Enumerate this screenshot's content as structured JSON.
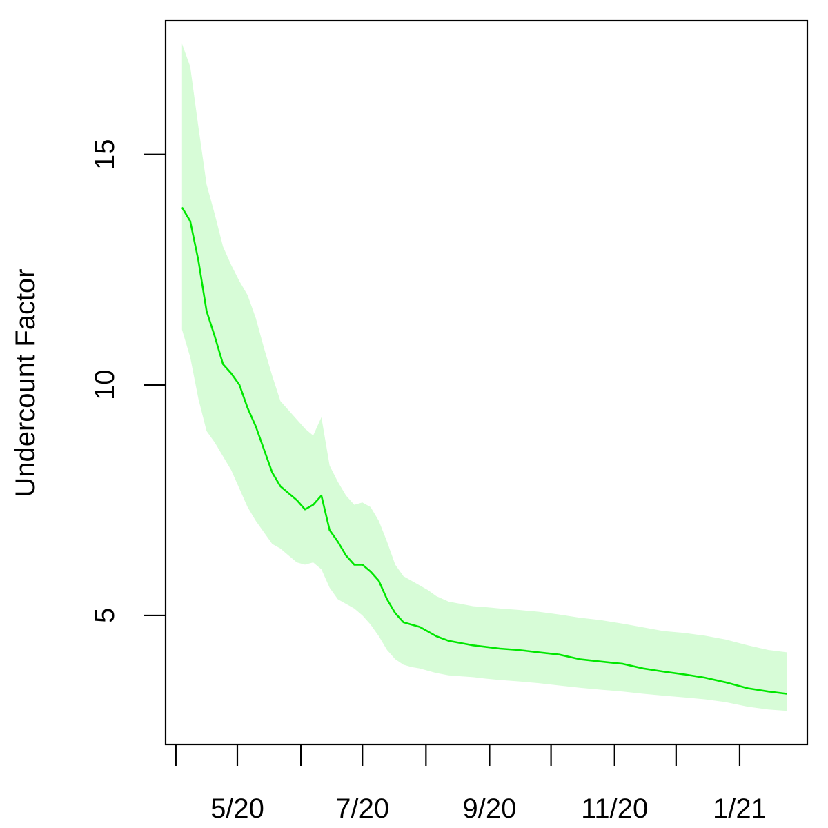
{
  "chart_data": {
    "type": "line",
    "title": "",
    "xlabel": "",
    "ylabel": "Undercount Factor",
    "x_tick_labels": [
      "5/20",
      "7/20",
      "9/20",
      "11/20",
      "1/21"
    ],
    "x_tick_dates": [
      "2020-04-01",
      "2020-05-01",
      "2020-06-01",
      "2020-07-01",
      "2020-08-01",
      "2020-09-01",
      "2020-10-01",
      "2020-11-01",
      "2020-12-01",
      "2021-01-01"
    ],
    "x_tick_labeled_dates": [
      "2020-05-01",
      "2020-07-01",
      "2020-09-01",
      "2020-11-01",
      "2021-01-01"
    ],
    "y_tick_labels": [
      "5",
      "10",
      "15"
    ],
    "y_ticks": [
      5,
      10,
      15
    ],
    "xlim": [
      "2020-03-27",
      "2021-02-03"
    ],
    "ylim": [
      2.2,
      17.9
    ],
    "grid": false,
    "line_color": "#00e600",
    "band_color": "#d7fcd7",
    "series": [
      {
        "x": [
          "2020-04-04",
          "2020-04-08",
          "2020-04-12",
          "2020-04-16",
          "2020-04-20",
          "2020-04-24",
          "2020-04-28",
          "2020-05-02",
          "2020-05-06",
          "2020-05-10",
          "2020-05-14",
          "2020-05-18",
          "2020-05-22",
          "2020-05-26",
          "2020-05-30",
          "2020-06-03",
          "2020-06-07",
          "2020-06-11",
          "2020-06-15",
          "2020-06-19",
          "2020-06-23",
          "2020-06-27",
          "2020-07-01",
          "2020-07-05",
          "2020-07-09",
          "2020-07-13",
          "2020-07-17",
          "2020-07-21",
          "2020-07-25",
          "2020-07-29",
          "2020-08-02",
          "2020-08-06",
          "2020-08-12",
          "2020-08-18",
          "2020-08-24",
          "2020-08-30",
          "2020-09-06",
          "2020-09-15",
          "2020-09-25",
          "2020-10-05",
          "2020-10-15",
          "2020-10-25",
          "2020-11-05",
          "2020-11-15",
          "2020-11-25",
          "2020-12-05",
          "2020-12-15",
          "2020-12-25",
          "2021-01-05",
          "2021-01-15",
          "2021-01-24"
        ],
        "y": [
          13.85,
          13.55,
          12.7,
          11.6,
          11.05,
          10.45,
          10.25,
          10.0,
          9.5,
          9.1,
          8.6,
          8.1,
          7.8,
          7.65,
          7.5,
          7.3,
          7.4,
          7.6,
          6.85,
          6.6,
          6.3,
          6.1,
          6.1,
          5.95,
          5.75,
          5.35,
          5.05,
          4.85,
          4.8,
          4.75,
          4.65,
          4.55,
          4.45,
          4.4,
          4.35,
          4.32,
          4.28,
          4.25,
          4.2,
          4.15,
          4.05,
          4.0,
          3.95,
          3.85,
          3.78,
          3.72,
          3.65,
          3.55,
          3.42,
          3.35,
          3.3
        ],
        "lower": [
          11.2,
          10.6,
          9.7,
          9.0,
          8.75,
          8.45,
          8.15,
          7.75,
          7.35,
          7.05,
          6.8,
          6.55,
          6.45,
          6.3,
          6.15,
          6.1,
          6.15,
          6.0,
          5.6,
          5.35,
          5.25,
          5.15,
          5.0,
          4.8,
          4.55,
          4.25,
          4.05,
          3.93,
          3.88,
          3.85,
          3.8,
          3.75,
          3.7,
          3.68,
          3.66,
          3.63,
          3.6,
          3.57,
          3.53,
          3.48,
          3.43,
          3.39,
          3.35,
          3.3,
          3.26,
          3.22,
          3.18,
          3.12,
          3.02,
          2.96,
          2.93
        ],
        "upper": [
          17.4,
          16.9,
          15.6,
          14.35,
          13.7,
          13.0,
          12.6,
          12.25,
          11.95,
          11.45,
          10.8,
          10.2,
          9.65,
          9.45,
          9.25,
          9.05,
          8.9,
          9.3,
          8.25,
          7.9,
          7.6,
          7.4,
          7.45,
          7.35,
          7.05,
          6.6,
          6.1,
          5.85,
          5.75,
          5.65,
          5.55,
          5.42,
          5.3,
          5.25,
          5.2,
          5.18,
          5.15,
          5.12,
          5.08,
          5.02,
          4.95,
          4.9,
          4.82,
          4.74,
          4.66,
          4.62,
          4.56,
          4.48,
          4.35,
          4.25,
          4.2
        ]
      }
    ]
  }
}
